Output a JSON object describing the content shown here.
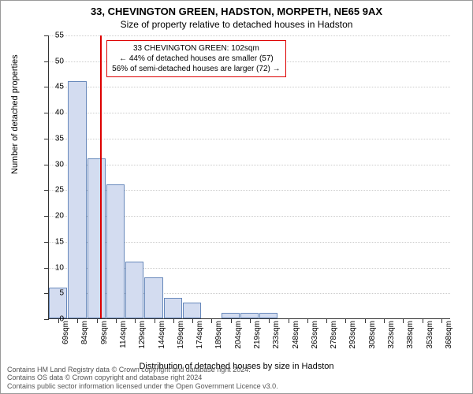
{
  "titles": {
    "main": "33, CHEVINGTON GREEN, HADSTON, MORPETH, NE65 9AX",
    "sub": "Size of property relative to detached houses in Hadston"
  },
  "chart": {
    "type": "histogram",
    "bar_fill": "#d3dcf0",
    "bar_stroke": "#6788bb",
    "grid_color": "#cccccc",
    "background": "#ffffff",
    "ylim": [
      0,
      55
    ],
    "ytick_step": 5,
    "y_axis_title": "Number of detached properties",
    "x_axis_title": "Distribution of detached houses by size in Hadston",
    "x_labels": [
      "69sqm",
      "84sqm",
      "99sqm",
      "114sqm",
      "129sqm",
      "144sqm",
      "159sqm",
      "174sqm",
      "189sqm",
      "204sqm",
      "219sqm",
      "233sqm",
      "248sqm",
      "263sqm",
      "278sqm",
      "293sqm",
      "308sqm",
      "323sqm",
      "338sqm",
      "353sqm",
      "368sqm"
    ],
    "values": [
      6,
      46,
      31,
      26,
      11,
      8,
      4,
      3,
      0,
      1,
      1,
      1,
      0,
      0,
      0,
      0,
      0,
      0,
      0,
      0,
      0
    ],
    "reference_line_x": 102,
    "x_range": [
      62,
      375
    ],
    "callout": {
      "line1": "33 CHEVINGTON GREEN: 102sqm",
      "line2": "← 44% of detached houses are smaller (57)",
      "line3": "56% of semi-detached houses are larger (72) →"
    }
  },
  "footer": {
    "line1": "Contains HM Land Registry data © Crown copyright and database right 2024.",
    "line2": "Contains OS data © Crown copyright and database right 2024",
    "line3": "Contains public sector information licensed under the Open Government Licence v3.0."
  }
}
